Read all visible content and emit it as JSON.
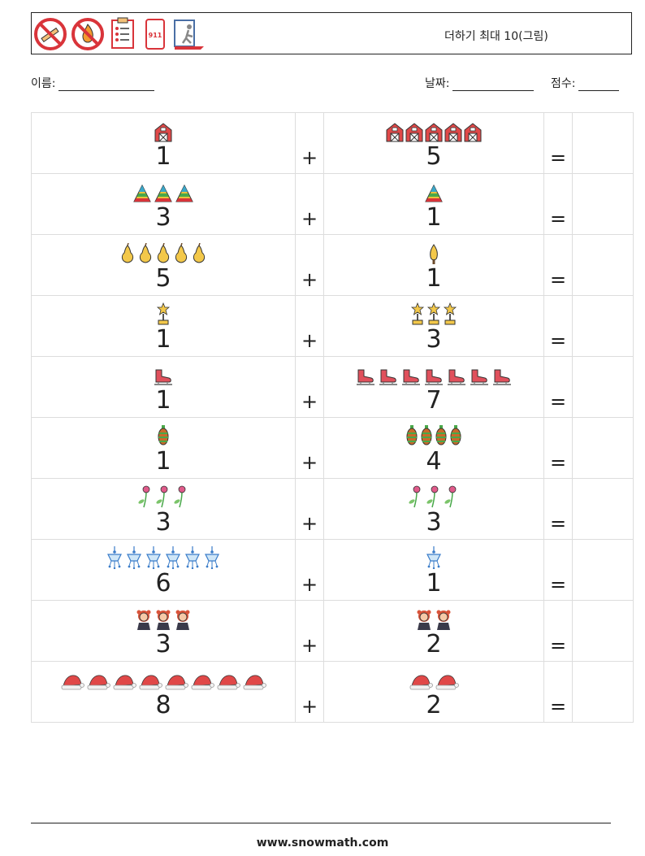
{
  "header": {
    "title": "더하기 최대 10(그림)",
    "icons": [
      "no-smoking-icon",
      "no-fire-icon",
      "checklist-icon",
      "phone-911-icon",
      "emergency-exit-icon"
    ],
    "phone_text": "911"
  },
  "meta": {
    "name_label": "이름:",
    "date_label": "날짜:",
    "score_label": "점수:"
  },
  "plus_sign": "+",
  "equals_sign": "=",
  "problems": [
    {
      "left_icon": "barn-icon",
      "left_count": 1,
      "left_label": "1",
      "right_icon": "barn-icon",
      "right_count": 5,
      "right_label": "5"
    },
    {
      "left_icon": "pyramid-icon",
      "left_count": 3,
      "left_label": "3",
      "right_icon": "pyramid-icon",
      "right_count": 1,
      "right_label": "1"
    },
    {
      "left_icon": "pear-icon",
      "left_count": 5,
      "left_label": "5",
      "right_icon": "candle-flame-icon",
      "right_count": 1,
      "right_label": "1"
    },
    {
      "left_icon": "trophy-icon",
      "left_count": 1,
      "left_label": "1",
      "right_icon": "trophy-icon",
      "right_count": 3,
      "right_label": "3"
    },
    {
      "left_icon": "ice-skate-icon",
      "left_count": 1,
      "left_label": "1",
      "right_icon": "ice-skate-icon",
      "right_count": 7,
      "right_label": "7"
    },
    {
      "left_icon": "ornament-icon",
      "left_count": 1,
      "left_label": "1",
      "right_icon": "ornament-icon",
      "right_count": 4,
      "right_label": "4"
    },
    {
      "left_icon": "flower-icon",
      "left_count": 3,
      "left_label": "3",
      "right_icon": "flower-icon",
      "right_count": 3,
      "right_label": "3"
    },
    {
      "left_icon": "chandelier-icon",
      "left_count": 6,
      "left_label": "6",
      "right_icon": "chandelier-icon",
      "right_count": 1,
      "right_label": "1"
    },
    {
      "left_icon": "girl-icon",
      "left_count": 3,
      "left_label": "3",
      "right_icon": "girl-icon",
      "right_count": 2,
      "right_label": "2"
    },
    {
      "left_icon": "santa-hat-icon",
      "left_count": 8,
      "left_label": "8",
      "right_icon": "santa-hat-icon",
      "right_count": 2,
      "right_label": "2"
    }
  ],
  "footer": {
    "url": "www.snowmath.com"
  }
}
